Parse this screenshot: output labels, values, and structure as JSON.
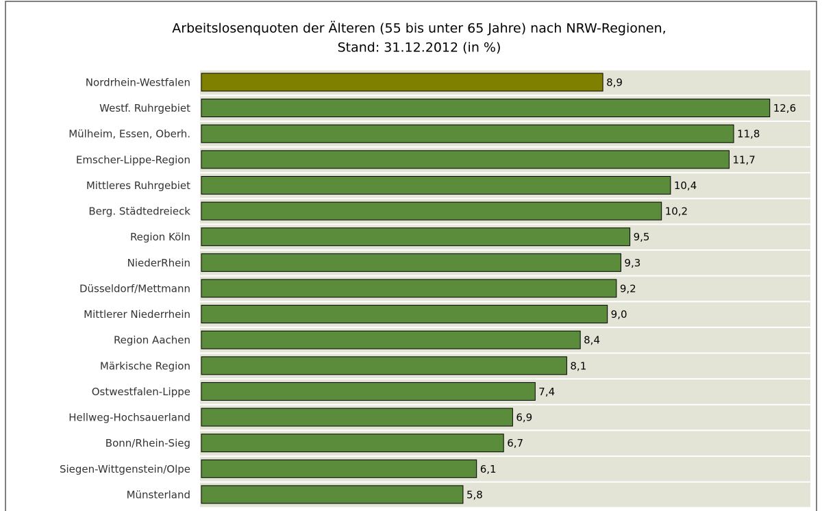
{
  "chart_data": {
    "type": "barh",
    "title": "Arbeitslosenquoten der Älteren (55 bis unter 65 Jahre) nach NRW-Regionen,",
    "subtitle": "Stand: 31.12.2012 (in %)",
    "categories": [
      "Nordrhein-Westfalen",
      "Westf. Ruhrgebiet",
      "Mülheim, Essen, Oberh.",
      "Emscher-Lippe-Region",
      "Mittleres Ruhrgebiet",
      "Berg. Städtedreieck",
      "Region Köln",
      "NiederRhein",
      "Düsseldorf/Mettmann",
      "Mittlerer Niederrhein",
      "Region Aachen",
      "Märkische Region",
      "Ostwestfalen-Lippe",
      "Hellweg-Hochsauerland",
      "Bonn/Rhein-Sieg",
      "Siegen-Wittgenstein/Olpe",
      "Münsterland"
    ],
    "values": [
      8.9,
      12.6,
      11.8,
      11.7,
      10.4,
      10.2,
      9.5,
      9.3,
      9.2,
      9.0,
      8.4,
      8.1,
      7.4,
      6.9,
      6.7,
      6.1,
      5.8
    ],
    "value_labels": [
      "8,9",
      "12,6",
      "11,8",
      "11,7",
      "10,4",
      "10,2",
      "9,5",
      "9,3",
      "9,2",
      "9,0",
      "8,4",
      "8,1",
      "7,4",
      "6,9",
      "6,7",
      "6,1",
      "5,8"
    ],
    "colors": [
      "#808000",
      "#5b8c3c",
      "#5b8c3c",
      "#5b8c3c",
      "#5b8c3c",
      "#5b8c3c",
      "#5b8c3c",
      "#5b8c3c",
      "#5b8c3c",
      "#5b8c3c",
      "#5b8c3c",
      "#5b8c3c",
      "#5b8c3c",
      "#5b8c3c",
      "#5b8c3c",
      "#5b8c3c",
      "#5b8c3c"
    ],
    "background": "#e3e3d6",
    "xlim": [
      0,
      13.5
    ]
  }
}
